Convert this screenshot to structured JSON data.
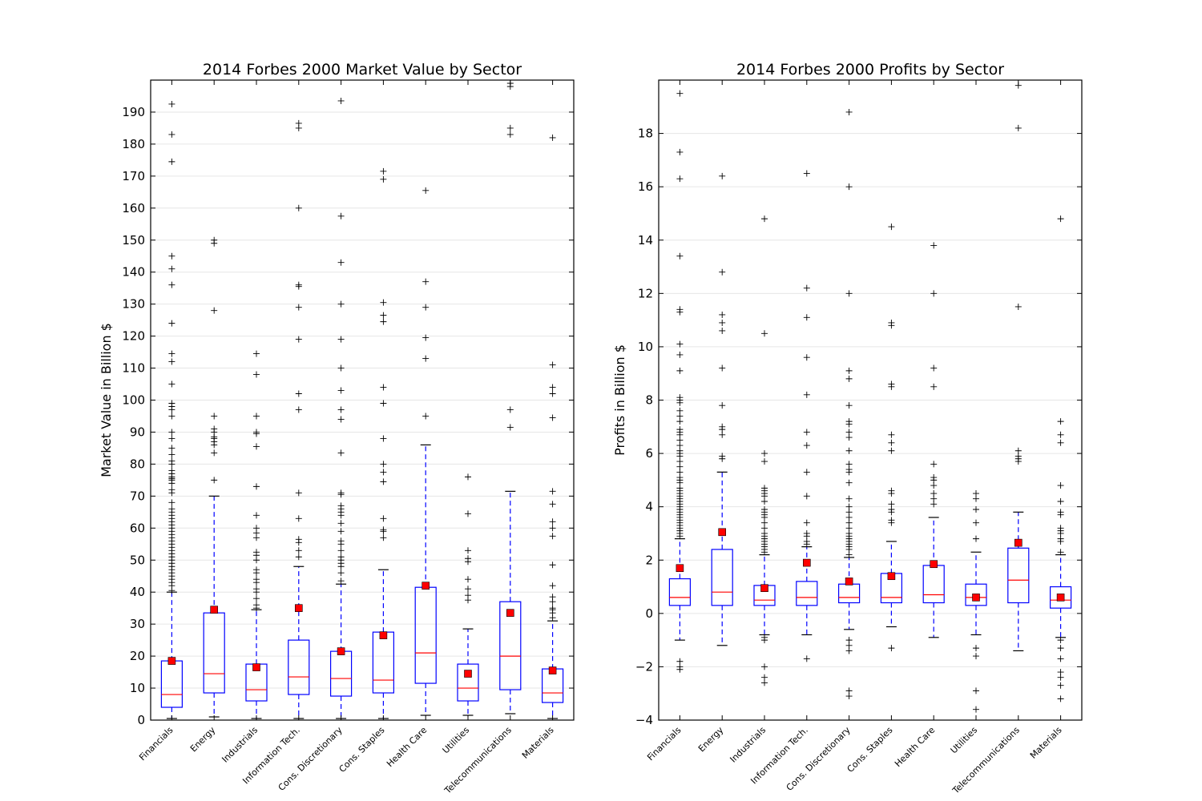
{
  "chart_data": [
    {
      "type": "box",
      "title": "2014 Forbes 2000 Market Value by Sector",
      "xlabel": "",
      "ylabel": "Market Value in Billion $",
      "ylim": [
        0,
        200
      ],
      "yticks": [
        0,
        10,
        20,
        30,
        40,
        50,
        60,
        70,
        80,
        90,
        100,
        110,
        120,
        130,
        140,
        150,
        160,
        170,
        180,
        190
      ],
      "grid": "horizontal",
      "categories": [
        "Financials",
        "Energy",
        "Industrials",
        "Information Tech.",
        "Cons. Discretionary",
        "Cons. Staples",
        "Health Care",
        "Utilities",
        "Telecommunications",
        "Materials"
      ],
      "boxes": [
        {
          "whislo": 0.5,
          "q1": 4,
          "med": 8,
          "q3": 18.5,
          "whishi": 40,
          "mean": 18.5,
          "fliers": [
            40.5,
            42,
            43,
            44,
            45,
            46,
            47,
            48,
            49,
            50,
            51,
            52,
            53,
            54,
            55,
            56,
            57,
            58,
            59,
            60,
            61,
            62,
            63,
            64,
            65,
            66,
            68,
            71,
            72,
            74,
            75,
            75.5,
            76,
            77,
            78,
            80,
            81,
            83,
            85,
            88,
            90,
            95,
            97,
            98,
            99,
            105,
            112,
            114.5,
            124,
            136,
            141,
            145,
            174.5,
            183,
            192.5
          ]
        },
        {
          "whislo": 1,
          "q1": 8.5,
          "med": 14.5,
          "q3": 33.5,
          "whishi": 70,
          "mean": 34.5,
          "fliers": [
            75,
            83.5,
            86,
            87,
            88,
            88.5,
            90,
            91,
            95,
            128,
            149,
            150
          ]
        },
        {
          "whislo": 0.5,
          "q1": 6,
          "med": 9.5,
          "q3": 17.5,
          "whishi": 34.5,
          "mean": 16.5,
          "fliers": [
            35,
            36,
            38,
            40,
            41,
            43,
            44,
            46,
            47,
            50,
            51.5,
            52.5,
            57,
            58.5,
            60,
            64,
            73,
            85.5,
            89.5,
            90,
            95,
            108,
            114.5
          ]
        },
        {
          "whislo": 0.5,
          "q1": 8,
          "med": 13.5,
          "q3": 25,
          "whishi": 48,
          "mean": 35,
          "fliers": [
            51,
            53,
            55.5,
            56.5,
            63,
            71,
            97,
            102,
            119,
            129,
            135.5,
            136,
            160,
            185,
            186.5
          ]
        },
        {
          "whislo": 0.5,
          "q1": 7.5,
          "med": 13,
          "q3": 21.5,
          "whishi": 42.5,
          "mean": 21.5,
          "fliers": [
            43.5,
            46,
            48,
            49,
            50,
            51,
            53,
            55,
            56,
            59,
            61.5,
            64,
            65,
            66,
            67,
            70.5,
            71,
            83.5,
            94,
            97,
            103,
            110,
            119,
            130,
            143,
            157.5,
            193.5
          ]
        },
        {
          "whislo": 0.5,
          "q1": 8.5,
          "med": 12.5,
          "q3": 27.5,
          "whishi": 47,
          "mean": 26.5,
          "fliers": [
            57,
            59,
            59.5,
            63,
            74.5,
            77.5,
            80,
            88,
            99,
            104,
            124.5,
            126.5,
            130.5,
            169,
            171.5
          ]
        },
        {
          "whislo": 1.5,
          "q1": 11.5,
          "med": 21,
          "q3": 41.5,
          "whishi": 86,
          "mean": 42,
          "fliers": [
            95,
            113,
            119.5,
            129,
            137,
            165.5
          ]
        },
        {
          "whislo": 1.5,
          "q1": 6,
          "med": 10,
          "q3": 17.5,
          "whishi": 28.5,
          "mean": 14.5,
          "fliers": [
            37.5,
            39,
            41,
            44,
            49.5,
            50.5,
            53,
            64.5,
            76
          ]
        },
        {
          "whislo": 2,
          "q1": 9.5,
          "med": 20,
          "q3": 37,
          "whishi": 71.5,
          "mean": 33.5,
          "fliers": [
            91.5,
            97,
            183,
            185,
            198,
            199
          ]
        },
        {
          "whislo": 0.5,
          "q1": 5.5,
          "med": 8.5,
          "q3": 16,
          "whishi": 31,
          "mean": 15.5,
          "fliers": [
            32,
            33.5,
            34.5,
            35,
            37,
            38.5,
            42,
            48.5,
            57.5,
            60,
            62,
            67.5,
            71.5,
            94.5,
            102,
            104,
            111,
            182
          ]
        }
      ]
    },
    {
      "type": "box",
      "title": "2014 Forbes 2000 Profits by Sector",
      "xlabel": "",
      "ylabel": "Profits in Billion $",
      "ylim": [
        -4,
        20
      ],
      "yticks": [
        -4,
        -2,
        0,
        2,
        4,
        6,
        8,
        10,
        12,
        14,
        16,
        18
      ],
      "grid": "horizontal",
      "categories": [
        "Financials",
        "Energy",
        "Industrials",
        "Information Tech.",
        "Cons. Discretionary",
        "Cons. Staples",
        "Health Care",
        "Utilities",
        "Telecommunications",
        "Materials"
      ],
      "boxes": [
        {
          "whislo": -1,
          "q1": 0.3,
          "med": 0.6,
          "q3": 1.3,
          "whishi": 2.8,
          "mean": 1.7,
          "fliers": [
            -1.8,
            -2,
            -2.1,
            2.9,
            3,
            3.1,
            3.2,
            3.3,
            3.4,
            3.5,
            3.6,
            3.7,
            3.8,
            3.9,
            4,
            4.1,
            4.2,
            4.3,
            4.4,
            4.5,
            4.6,
            4.7,
            4.9,
            5,
            5.1,
            5.3,
            5.5,
            5.7,
            5.9,
            6,
            6.1,
            6.3,
            6.5,
            6.7,
            6.8,
            6.9,
            7.2,
            7.4,
            7.6,
            7.9,
            8,
            8.1,
            9.1,
            9.7,
            10.1,
            11.3,
            11.4,
            13.4,
            16.3,
            17.3,
            19.5
          ]
        },
        {
          "whislo": -1.2,
          "q1": 0.3,
          "med": 0.8,
          "q3": 2.4,
          "whishi": 5.3,
          "mean": 3.05,
          "fliers": [
            5.8,
            5.9,
            6.7,
            6.9,
            7,
            7.8,
            9.2,
            10.6,
            10.9,
            11.2,
            12.8,
            16.4
          ]
        },
        {
          "whislo": -0.8,
          "q1": 0.3,
          "med": 0.5,
          "q3": 1.05,
          "whishi": 2.2,
          "mean": 0.95,
          "fliers": [
            -0.9,
            -1,
            -2,
            -2.4,
            -2.6,
            2.3,
            2.4,
            2.5,
            2.6,
            2.7,
            2.8,
            2.9,
            3,
            3.2,
            3.4,
            3.6,
            3.7,
            3.8,
            3.9,
            4.2,
            4.4,
            4.5,
            4.6,
            4.7,
            5.7,
            6,
            10.5,
            14.8
          ]
        },
        {
          "whislo": -0.8,
          "q1": 0.3,
          "med": 0.6,
          "q3": 1.2,
          "whishi": 2.5,
          "mean": 1.9,
          "fliers": [
            -1.7,
            2.6,
            2.7,
            2.9,
            3,
            3.4,
            4.4,
            5.3,
            6.3,
            6.8,
            8.2,
            9.6,
            11.1,
            12.2,
            16.5
          ]
        },
        {
          "whislo": -0.6,
          "q1": 0.4,
          "med": 0.6,
          "q3": 1.1,
          "whishi": 2.1,
          "mean": 1.2,
          "fliers": [
            -1,
            -1.2,
            -1.4,
            -2.9,
            -3.1,
            2.2,
            2.4,
            2.5,
            2.6,
            2.7,
            2.8,
            2.9,
            3,
            3.2,
            3.4,
            3.6,
            3.8,
            4,
            4.3,
            4.9,
            5.3,
            5.4,
            5.6,
            6.1,
            6.6,
            6.8,
            7.1,
            7.2,
            7.8,
            8.8,
            9.1,
            12,
            16,
            18.8
          ]
        },
        {
          "whislo": -0.5,
          "q1": 0.4,
          "med": 0.6,
          "q3": 1.5,
          "whishi": 2.7,
          "mean": 1.4,
          "fliers": [
            -1.3,
            3.4,
            3.5,
            3.8,
            3.9,
            4.1,
            4.5,
            4.6,
            6.1,
            6.4,
            6.7,
            8.5,
            8.6,
            10.8,
            10.9,
            14.5
          ]
        },
        {
          "whislo": -0.9,
          "q1": 0.4,
          "med": 0.7,
          "q3": 1.8,
          "whishi": 3.6,
          "mean": 1.85,
          "fliers": [
            4.1,
            4.3,
            4.5,
            4.8,
            5,
            5.1,
            5.6,
            8.5,
            9.2,
            12,
            13.8
          ]
        },
        {
          "whislo": -0.8,
          "q1": 0.3,
          "med": 0.6,
          "q3": 1.1,
          "whishi": 2.3,
          "mean": 0.6,
          "fliers": [
            -1.3,
            -1.6,
            -2.9,
            -3.6,
            2.8,
            3.4,
            3.9,
            4.3,
            4.5
          ]
        },
        {
          "whislo": -1.4,
          "q1": 0.4,
          "med": 1.25,
          "q3": 2.45,
          "whishi": 3.8,
          "mean": 2.65,
          "fliers": [
            5.7,
            5.8,
            5.9,
            6.1,
            11.5,
            18.2,
            19.8
          ]
        },
        {
          "whislo": -0.9,
          "q1": 0.2,
          "med": 0.5,
          "q3": 1,
          "whishi": 2.2,
          "mean": 0.6,
          "fliers": [
            -1,
            -1.3,
            -1.7,
            -2.2,
            -2.4,
            -2.7,
            -3.2,
            2.3,
            2.7,
            2.8,
            3,
            3.1,
            3.2,
            3.7,
            3.8,
            4.2,
            4.8,
            6.4,
            6.7,
            7.2,
            14.8
          ]
        }
      ]
    }
  ]
}
